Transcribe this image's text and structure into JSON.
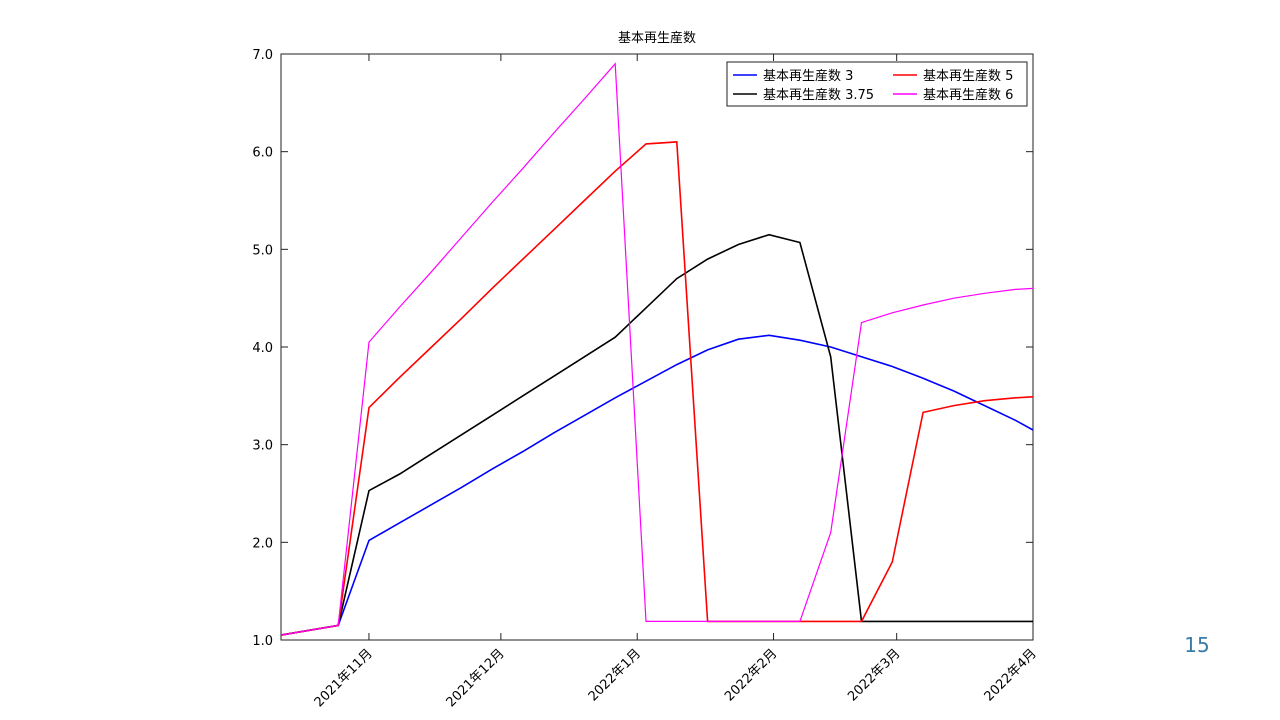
{
  "chart_data": {
    "type": "line",
    "title": "基本再生産数",
    "x": [
      -20,
      -7,
      0,
      7,
      14,
      21,
      28,
      35,
      42,
      49,
      56,
      63,
      70,
      77,
      84,
      91,
      98,
      105,
      112,
      119,
      126,
      133,
      140,
      147,
      151
    ],
    "xlim": [
      -20,
      151
    ],
    "xticks": [
      {
        "value": 0,
        "label": "2021年11月"
      },
      {
        "value": 30,
        "label": "2021年12月"
      },
      {
        "value": 61,
        "label": "2022年1月"
      },
      {
        "value": 92,
        "label": "2022年2月"
      },
      {
        "value": 120,
        "label": "2022年3月"
      },
      {
        "value": 151,
        "label": "2022年4月"
      }
    ],
    "ylim": [
      1,
      7
    ],
    "yticks": [
      {
        "value": 1,
        "label": "1.0"
      },
      {
        "value": 2,
        "label": "2.0"
      },
      {
        "value": 3,
        "label": "3.0"
      },
      {
        "value": 4,
        "label": "4.0"
      },
      {
        "value": 5,
        "label": "5.0"
      },
      {
        "value": 6,
        "label": "6.0"
      },
      {
        "value": 7,
        "label": "7.0"
      }
    ],
    "legend": "upper right",
    "series": [
      {
        "name": "基本再生産数 3",
        "color": "#0000ff",
        "values": [
          1.05,
          1.15,
          2.02,
          2.2,
          2.38,
          2.56,
          2.75,
          2.93,
          3.12,
          3.3,
          3.48,
          3.65,
          3.82,
          3.97,
          4.08,
          4.12,
          4.07,
          4.0,
          3.9,
          3.8,
          3.68,
          3.55,
          3.4,
          3.25,
          3.15
        ]
      },
      {
        "name": "基本再生産数 3.75",
        "color": "#000000",
        "values": [
          1.05,
          1.15,
          2.53,
          2.7,
          2.9,
          3.1,
          3.3,
          3.5,
          3.7,
          3.9,
          4.1,
          4.4,
          4.7,
          4.9,
          5.05,
          5.15,
          5.07,
          3.9,
          1.19,
          1.19,
          1.19,
          1.19,
          1.19,
          1.19,
          1.19
        ]
      },
      {
        "name": "基本再生産数 5",
        "color": "#ff0000",
        "values": [
          1.05,
          1.15,
          3.38,
          3.69,
          3.99,
          4.29,
          4.6,
          4.9,
          5.2,
          5.5,
          5.8,
          6.08,
          6.1,
          1.19,
          1.19,
          1.19,
          1.19,
          1.19,
          1.19,
          1.8,
          3.33,
          3.4,
          3.45,
          3.48,
          3.49
        ]
      },
      {
        "name": "基本再生産数 6",
        "color": "#ff00ff",
        "values": [
          1.05,
          1.15,
          4.05,
          4.41,
          4.76,
          5.12,
          5.48,
          5.83,
          6.19,
          6.54,
          6.9,
          1.19,
          1.19,
          1.19,
          1.19,
          1.19,
          1.19,
          2.1,
          4.25,
          4.35,
          4.43,
          4.5,
          4.55,
          4.59,
          4.6
        ]
      }
    ]
  },
  "page_number": "15"
}
